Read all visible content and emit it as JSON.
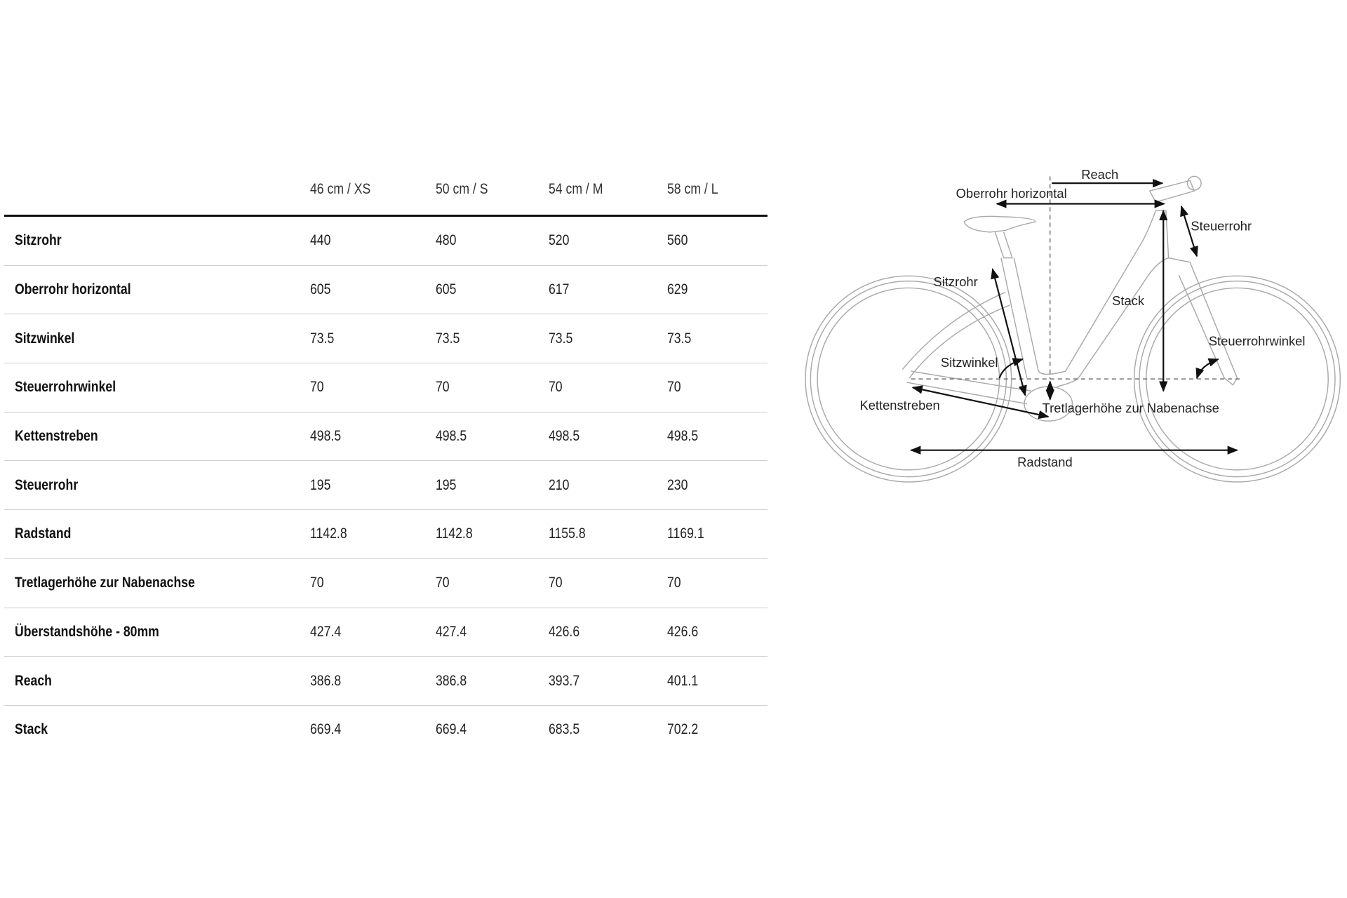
{
  "table": {
    "columns": [
      "46 cm / XS",
      "50 cm / S",
      "54 cm / M",
      "58 cm / L"
    ],
    "rows": [
      {
        "label": "Sitzrohr",
        "values": [
          "440",
          "480",
          "520",
          "560"
        ]
      },
      {
        "label": "Oberrohr horizontal",
        "values": [
          "605",
          "605",
          "617",
          "629"
        ]
      },
      {
        "label": "Sitzwinkel",
        "values": [
          "73.5",
          "73.5",
          "73.5",
          "73.5"
        ]
      },
      {
        "label": "Steuerrohrwinkel",
        "values": [
          "70",
          "70",
          "70",
          "70"
        ]
      },
      {
        "label": "Kettenstreben",
        "values": [
          "498.5",
          "498.5",
          "498.5",
          "498.5"
        ]
      },
      {
        "label": "Steuerrohr",
        "values": [
          "195",
          "195",
          "210",
          "230"
        ]
      },
      {
        "label": "Radstand",
        "values": [
          "1142.8",
          "1142.8",
          "1155.8",
          "1169.1"
        ]
      },
      {
        "label": "Tretlagerhöhe zur Nabenachse",
        "values": [
          "70",
          "70",
          "70",
          "70"
        ]
      },
      {
        "label": "Überstandshöhe - 80mm",
        "values": [
          "427.4",
          "427.4",
          "426.6",
          "426.6"
        ]
      },
      {
        "label": "Reach",
        "values": [
          "386.8",
          "386.8",
          "393.7",
          "401.1"
        ]
      },
      {
        "label": "Stack",
        "values": [
          "669.4",
          "669.4",
          "683.5",
          "702.2"
        ]
      }
    ]
  },
  "diagram": {
    "labels": {
      "reach": "Reach",
      "top_tube": "Oberrohr horizontal",
      "head_tube": "Steuerrohr",
      "seat_tube": "Sitzrohr",
      "stack": "Stack",
      "seat_angle": "Sitzwinkel",
      "head_angle": "Steuerrohrwinkel",
      "chainstays": "Kettenstreben",
      "bb_drop": "Tretlagerhöhe zur Nabenachse",
      "wheelbase": "Radstand"
    }
  }
}
